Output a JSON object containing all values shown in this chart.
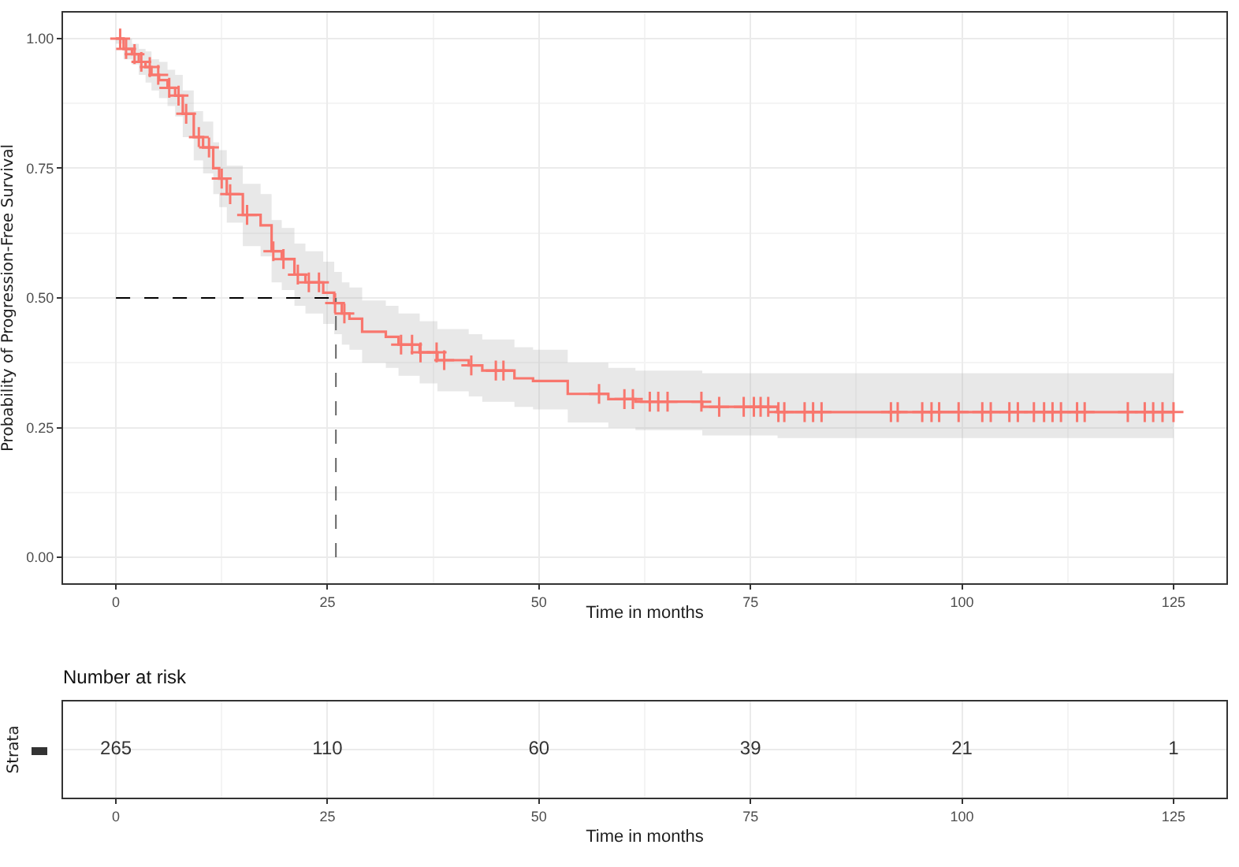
{
  "chart_data": [
    {
      "type": "step",
      "xlabel": "Time in months",
      "ylabel": "Probability of Progression-Free Survival",
      "xlim": [
        -6.25,
        131.25
      ],
      "ylim": [
        -0.05,
        1.05
      ],
      "xticks": [
        0,
        25,
        50,
        75,
        100,
        125
      ],
      "yticks": [
        {
          "value": 0,
          "label": "0.00"
        },
        {
          "value": 0.25,
          "label": "0.25"
        },
        {
          "value": 0.5,
          "label": "0.50"
        },
        {
          "value": 0.75,
          "label": "0.75"
        },
        {
          "value": 1,
          "label": "1.00"
        }
      ],
      "grid": true,
      "line_style": "solid",
      "series": [
        {
          "type": "step",
          "color": "#f8766d",
          "marker": "none",
          "x": [
            0,
            0.9,
            1.9,
            2.7,
            3.5,
            4.2,
            5.1,
            6.1,
            7.0,
            7.9,
            9.2,
            10.3,
            11.5,
            12.2,
            13.1,
            15.0,
            17.1,
            18.4,
            19.6,
            21.1,
            22.4,
            24.5,
            25.8,
            26.7,
            27.6,
            29.1,
            31.9,
            33.4,
            35.9,
            38.0,
            41.7,
            43.3,
            47.1,
            49.3,
            53.4,
            58.2,
            61.4,
            69.3,
            78.2,
            125
          ],
          "values": [
            1,
            0.98,
            0.97,
            0.955,
            0.945,
            0.93,
            0.92,
            0.905,
            0.89,
            0.855,
            0.81,
            0.79,
            0.75,
            0.73,
            0.7,
            0.66,
            0.64,
            0.59,
            0.575,
            0.545,
            0.53,
            0.51,
            0.49,
            0.47,
            0.46,
            0.435,
            0.425,
            0.41,
            0.395,
            0.38,
            0.37,
            0.36,
            0.345,
            0.34,
            0.315,
            0.305,
            0.3,
            0.29,
            0.28,
            0.28
          ],
          "lower": [
            0.99,
            0.96,
            0.95,
            0.93,
            0.915,
            0.9,
            0.885,
            0.87,
            0.85,
            0.81,
            0.765,
            0.74,
            0.7,
            0.675,
            0.645,
            0.6,
            0.58,
            0.53,
            0.515,
            0.485,
            0.47,
            0.45,
            0.43,
            0.41,
            0.4,
            0.375,
            0.365,
            0.35,
            0.335,
            0.32,
            0.31,
            0.3,
            0.29,
            0.285,
            0.26,
            0.25,
            0.245,
            0.235,
            0.23,
            0.23
          ],
          "upper": [
            1,
            1,
            0.99,
            0.98,
            0.975,
            0.96,
            0.955,
            0.94,
            0.93,
            0.9,
            0.86,
            0.84,
            0.8,
            0.785,
            0.755,
            0.72,
            0.7,
            0.65,
            0.635,
            0.605,
            0.59,
            0.57,
            0.55,
            0.53,
            0.52,
            0.495,
            0.485,
            0.47,
            0.455,
            0.44,
            0.43,
            0.42,
            0.405,
            0.4,
            0.375,
            0.365,
            0.36,
            0.355,
            0.355,
            0.355
          ]
        },
        {
          "type": "scatter",
          "color": "#f8766d",
          "marker": "cross",
          "x": [
            0.5,
            1.2,
            2.2,
            3.0,
            4,
            5,
            6.3,
            7.4,
            8.3,
            9.8,
            11,
            12.5,
            13.5,
            15.5,
            18.6,
            19.8,
            21.5,
            22.8,
            24,
            25.9,
            27,
            33.7,
            35.0,
            36.0,
            37.9,
            38.8,
            42.0,
            44.9,
            45.8,
            57.1,
            60.1,
            61.1,
            63.1,
            64.1,
            65.2,
            69.2,
            71.3,
            74.2,
            75.4,
            76.2,
            77.1,
            78.3,
            79.0,
            81.4,
            82.4,
            83.4,
            91.6,
            92.4,
            95.3,
            96.4,
            97.3,
            99.6,
            102.4,
            103.4,
            105.6,
            106.6,
            108.5,
            109.7,
            110.7,
            111.7,
            113.6,
            114.5,
            119.6,
            121.6,
            122.6,
            123.7,
            125
          ],
          "values": [
            1,
            0.98,
            0.97,
            0.955,
            0.945,
            0.93,
            0.905,
            0.89,
            0.855,
            0.81,
            0.79,
            0.73,
            0.7,
            0.66,
            0.59,
            0.575,
            0.545,
            0.53,
            0.53,
            0.49,
            0.47,
            0.41,
            0.41,
            0.395,
            0.395,
            0.38,
            0.37,
            0.36,
            0.36,
            0.315,
            0.305,
            0.305,
            0.3,
            0.3,
            0.3,
            0.3,
            0.29,
            0.29,
            0.29,
            0.29,
            0.29,
            0.28,
            0.28,
            0.28,
            0.28,
            0.28,
            0.28,
            0.28,
            0.28,
            0.28,
            0.28,
            0.28,
            0.28,
            0.28,
            0.28,
            0.28,
            0.28,
            0.28,
            0.28,
            0.28,
            0.28,
            0.28,
            0.28,
            0.28,
            0.28,
            0.28,
            0.28
          ]
        }
      ],
      "ref_lines": [
        {
          "axis": "y",
          "value": 0.5,
          "line_style": "dashed",
          "color": "#000000"
        },
        {
          "axis": "x",
          "value": 26,
          "line_style": "dashed",
          "color": "#666666"
        }
      ]
    },
    {
      "type": "heatmap",
      "title": "Number at risk",
      "xlabel": "Time in months",
      "ylabel": "Strata",
      "categories": [
        "0",
        "25",
        "50",
        "75",
        "100",
        "125"
      ],
      "y_categories": [
        null
      ],
      "cells": [
        [
          265,
          110,
          60,
          39,
          21,
          1
        ]
      ],
      "data_labels": true,
      "grid": true
    }
  ]
}
